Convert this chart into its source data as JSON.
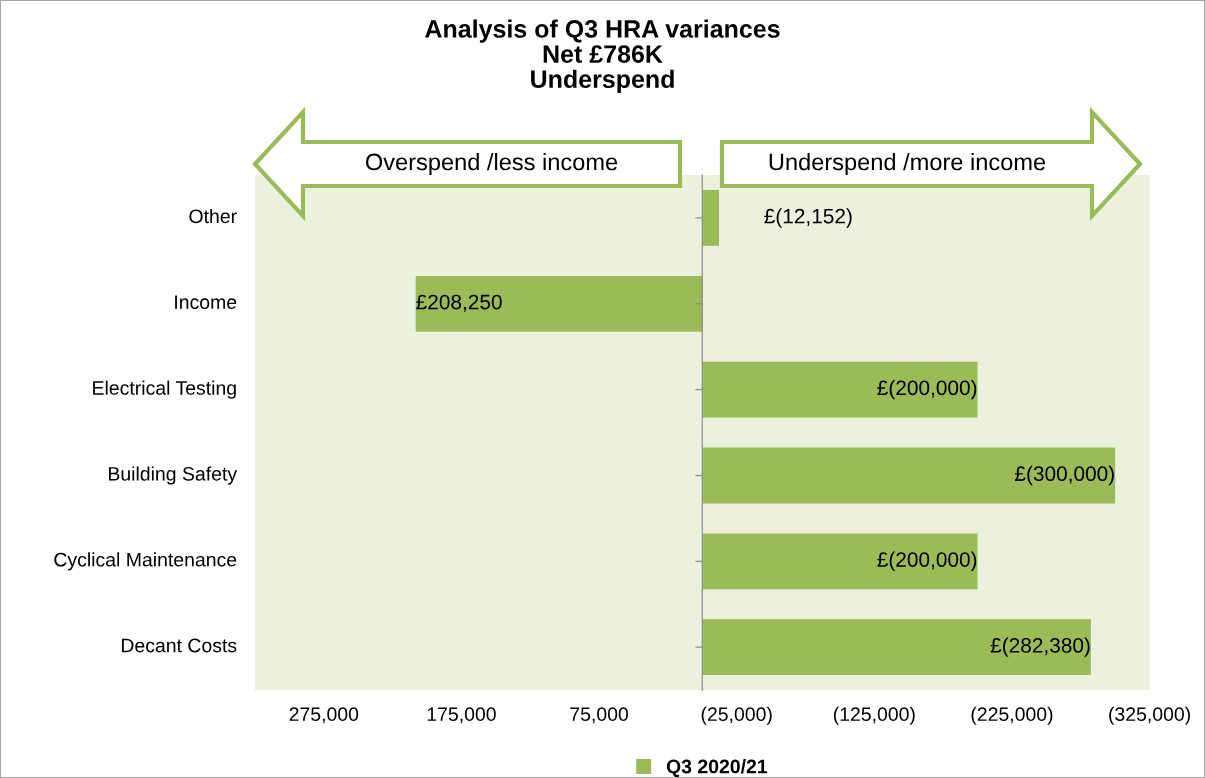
{
  "chart_data": {
    "type": "bar",
    "orientation": "horizontal",
    "title": "Analysis of Q3 HRA variances\nNet £786K\nUnderspend",
    "categories": [
      "Other",
      "Income",
      "Electrical Testing",
      "Building Safety",
      "Cyclical Maintenance",
      "Decant Costs"
    ],
    "series": [
      {
        "name": "Q3 2020/21",
        "color": "#9bbb59",
        "values": [
          -12152,
          208250,
          -200000,
          -300000,
          -200000,
          -282380
        ]
      }
    ],
    "value_labels": [
      "£(12,152)",
      "£208,250",
      "£(200,000)",
      "£(300,000)",
      "£(200,000)",
      "£(282,380)"
    ],
    "xlim": [
      325000,
      -325000
    ],
    "xticks": [
      {
        "value": 275000,
        "label": "275,000"
      },
      {
        "value": 175000,
        "label": "175,000"
      },
      {
        "value": 75000,
        "label": "75,000"
      },
      {
        "value": -25000,
        "label": "(25,000)"
      },
      {
        "value": -125000,
        "label": "(125,000)"
      },
      {
        "value": -225000,
        "label": "(225,000)"
      },
      {
        "value": -325000,
        "label": "(325,000)"
      }
    ],
    "annotations": [
      "Overspend /less income",
      "Underspend /more income"
    ],
    "grid": false,
    "legend": "bottom"
  }
}
